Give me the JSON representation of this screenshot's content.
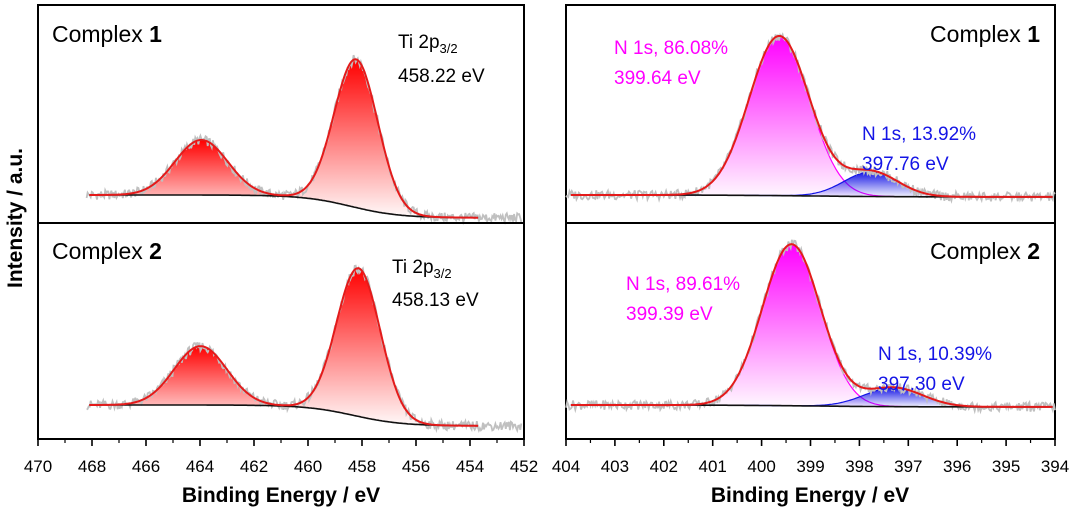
{
  "colors": {
    "ti_fill": "#ff0000",
    "ti_envelope": "#e41a1a",
    "raw": "#c0c0c0",
    "baseline": "#111111",
    "n_main": "#ff00ff",
    "n_minor": "#1414e6",
    "envelope": "#e41a1a"
  },
  "figure": {
    "ylabel": "Intensity / a.u."
  },
  "chart_data": [
    {
      "type": "line",
      "panel": "ti-complex-1",
      "title_prefix": "Complex ",
      "title_num": "1",
      "xlabel": "Binding Energy / eV",
      "xlim": [
        470,
        452
      ],
      "xticks": [
        470,
        468,
        466,
        464,
        462,
        460,
        458,
        456,
        454,
        452
      ],
      "annotations": [
        {
          "line1": "Ti 2p",
          "sub": "3/2",
          "line2": "458.22 eV"
        }
      ],
      "peaks": [
        {
          "center": 458.22,
          "height": 0.78,
          "fwhm": 1.9
        },
        {
          "center": 463.95,
          "height": 0.29,
          "fwhm": 2.3
        }
      ],
      "baseline": {
        "high_be": 0.0,
        "low_be": -0.12,
        "step_center": 458.4
      }
    },
    {
      "type": "line",
      "panel": "ti-complex-2",
      "title_prefix": "Complex ",
      "title_num": "2",
      "xlabel": "Binding Energy / eV",
      "xlim": [
        470,
        452
      ],
      "xticks": [
        470,
        468,
        466,
        464,
        462,
        460,
        458,
        456,
        454,
        452
      ],
      "annotations": [
        {
          "line1": "Ti 2p",
          "sub": "3/2",
          "line2": "458.13 eV"
        }
      ],
      "peaks": [
        {
          "center": 458.13,
          "height": 0.78,
          "fwhm": 1.9
        },
        {
          "center": 463.98,
          "height": 0.31,
          "fwhm": 2.3
        }
      ],
      "baseline": {
        "high_be": 0.0,
        "low_be": -0.11,
        "step_center": 458.3
      }
    },
    {
      "type": "area",
      "panel": "n-complex-1",
      "title_prefix": "Complex ",
      "title_num": "1",
      "xlabel": "Binding Energy / eV",
      "xlim": [
        404,
        394
      ],
      "xticks": [
        404,
        403,
        402,
        401,
        400,
        399,
        398,
        397,
        396,
        395,
        394
      ],
      "series": [
        {
          "name": "N 1s, 86.08%",
          "energy": "399.64 eV",
          "center": 399.64,
          "height": 0.84,
          "fwhm": 1.45,
          "color_key": "n_main"
        },
        {
          "name": "N 1s, 13.92%",
          "energy": "397.76 eV",
          "center": 397.76,
          "height": 0.13,
          "fwhm": 1.3,
          "color_key": "n_minor"
        }
      ],
      "baseline": {
        "high_be": 0.0,
        "low_be": -0.01,
        "step_center": 399.0
      }
    },
    {
      "type": "area",
      "panel": "n-complex-2",
      "title_prefix": "Complex ",
      "title_num": "2",
      "xlabel": "Binding Energy / eV",
      "xlim": [
        404,
        394
      ],
      "xticks": [
        404,
        403,
        402,
        401,
        400,
        399,
        398,
        397,
        396,
        395,
        394
      ],
      "series": [
        {
          "name": "N 1s, 89.61%",
          "energy": "399.39 eV",
          "center": 399.39,
          "height": 0.85,
          "fwhm": 1.4,
          "color_key": "n_main"
        },
        {
          "name": "N 1s, 10.39%",
          "energy": "397.30 eV",
          "center": 397.3,
          "height": 0.1,
          "fwhm": 1.4,
          "color_key": "n_minor"
        }
      ],
      "baseline": {
        "high_be": 0.0,
        "low_be": -0.01,
        "step_center": 399.0
      }
    }
  ]
}
